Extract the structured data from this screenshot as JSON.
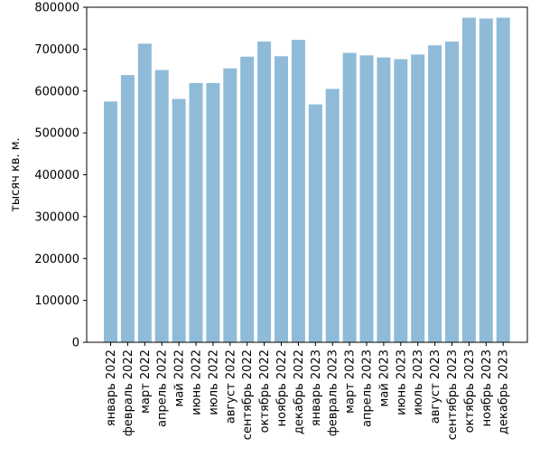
{
  "chart_data": {
    "type": "bar",
    "title": "",
    "xlabel": "",
    "ylabel": "тысяч кв. м.",
    "ylim": [
      0,
      800000
    ],
    "yticks": [
      0,
      100000,
      200000,
      300000,
      400000,
      500000,
      600000,
      700000,
      800000
    ],
    "grid": false,
    "bar_color": "#8fbbd9",
    "categories": [
      "январь 2022",
      "февраль 2022",
      "март 2022",
      "апрель 2022",
      "май 2022",
      "июнь 2022",
      "июль 2022",
      "август 2022",
      "сентябрь 2022",
      "октябрь 2022",
      "ноябрь 2022",
      "декабрь 2022",
      "январь 2023",
      "февраль 2023",
      "март 2023",
      "апрель 2023",
      "май 2023",
      "июнь 2023",
      "июль 2023",
      "август 2023",
      "сентябрь 2023",
      "октябрь 2023",
      "ноябрь 2023",
      "декабрь 2023"
    ],
    "values": [
      575000,
      638000,
      713000,
      650000,
      581000,
      619000,
      619000,
      654000,
      682000,
      718000,
      683000,
      722000,
      568000,
      605000,
      691000,
      685000,
      680000,
      676000,
      687000,
      709000,
      718000,
      775000,
      773000,
      775000
    ]
  }
}
